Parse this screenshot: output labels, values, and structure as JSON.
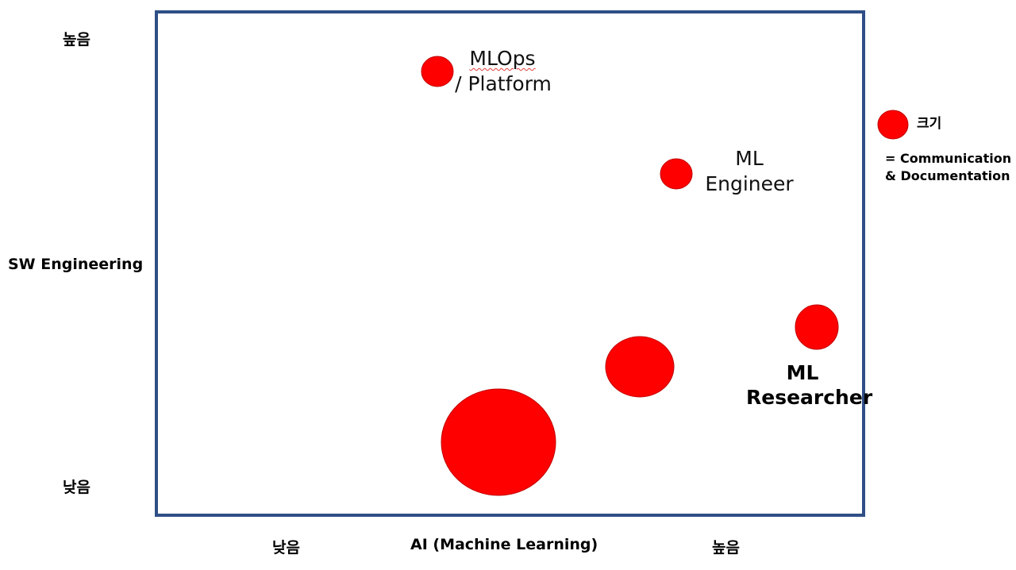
{
  "y_axis": {
    "title": "SW Engineering",
    "high": "높음",
    "low": "낮음"
  },
  "x_axis": {
    "title": "AI (Machine Learning)",
    "high": "높음",
    "low": "낮음"
  },
  "roles": {
    "mlops": {
      "line1": "MLOps",
      "line2": "/ Platform"
    },
    "ml_engineer": {
      "line1": "ML",
      "line2": "Engineer"
    },
    "ml_researcher": {
      "line1": "ML",
      "line2": "Researcher"
    }
  },
  "legend": {
    "title": "크기",
    "line1": "= Communication",
    "line2": "& Documentation"
  },
  "colors": {
    "bubble": "#ff0000",
    "frame": "#2f4f86"
  }
}
